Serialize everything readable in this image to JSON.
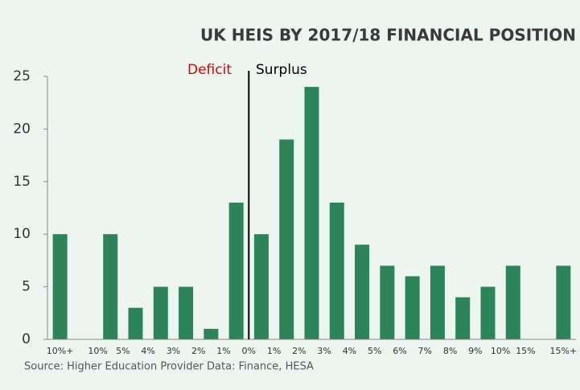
{
  "chart_data": {
    "type": "bar",
    "title": "UK HEIS BY 2017/18  FINANCIAL POSITION",
    "categories": [
      "10%+",
      null,
      "10%",
      "5%",
      "4%",
      "3%",
      "2%",
      "1%",
      "0%",
      "1%",
      "2%",
      "3%",
      "4%",
      "5%",
      "6%",
      "7%",
      "8%",
      "9%",
      "10%",
      "15%",
      "15%+"
    ],
    "values": [
      10,
      0,
      10,
      3,
      5,
      5,
      1,
      13,
      10,
      19,
      24,
      13,
      9,
      7,
      6,
      7,
      4,
      5,
      7,
      0,
      7
    ],
    "color": "#2e8459",
    "ylim": [
      0,
      25
    ],
    "yticks": [
      0,
      5,
      10,
      15,
      20,
      25
    ],
    "annotations": {
      "deficit": "Deficit",
      "surplus": "Surplus"
    },
    "source": "Source: Higher Education Provider Data: Finance, HESA"
  }
}
